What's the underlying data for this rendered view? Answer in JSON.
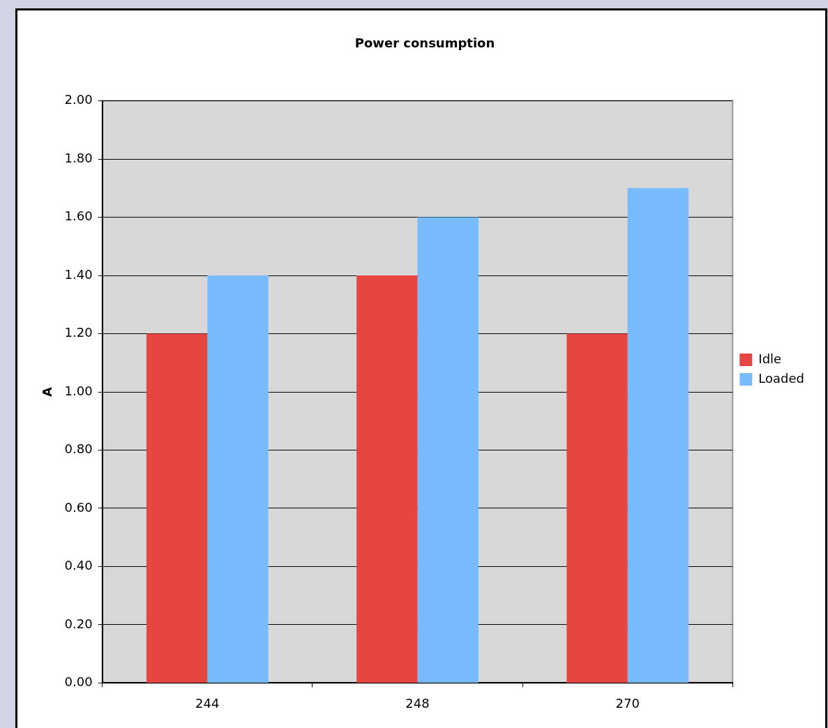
{
  "chart_data": {
    "type": "bar",
    "title": "Power consumption",
    "ylabel": "A",
    "categories": [
      "244",
      "248",
      "270"
    ],
    "series": [
      {
        "name": "Idle",
        "color": "#e54642",
        "values": [
          1.2,
          1.4,
          1.2
        ]
      },
      {
        "name": "Loaded",
        "color": "#77bbfd",
        "values": [
          1.4,
          1.6,
          1.7
        ]
      }
    ],
    "ylim": [
      0,
      2
    ],
    "yticks": [
      {
        "value": 0,
        "label": "0.00"
      },
      {
        "value": 0.2,
        "label": "0.20"
      },
      {
        "value": 0.4,
        "label": "0.40"
      },
      {
        "value": 0.6,
        "label": "0.60"
      },
      {
        "value": 0.8,
        "label": "0.80"
      },
      {
        "value": 1,
        "label": "1.00"
      },
      {
        "value": 1.2,
        "label": "1.20"
      },
      {
        "value": 1.4,
        "label": "1.40"
      },
      {
        "value": 1.6,
        "label": "1.60"
      },
      {
        "value": 1.8,
        "label": "1.80"
      },
      {
        "value": 2,
        "label": "2.00"
      }
    ],
    "grid": "y",
    "legend": "right"
  }
}
